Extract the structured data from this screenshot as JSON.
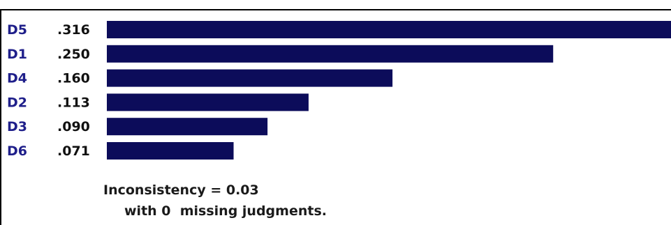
{
  "chart_data": {
    "type": "bar",
    "orientation": "horizontal",
    "categories": [
      "D5",
      "D1",
      "D4",
      "D2",
      "D3",
      "D6"
    ],
    "value_labels": [
      ".316",
      ".250",
      ".160",
      ".113",
      ".090",
      ".071"
    ],
    "values": [
      0.316,
      0.25,
      0.16,
      0.113,
      0.09,
      0.071
    ],
    "xlim": [
      0,
      0.316
    ],
    "grid": false,
    "colors": {
      "bar": "#0c0c5a",
      "category_label": "#1f1f8a",
      "value_label": "#111111",
      "border": "#000000"
    }
  },
  "footer": {
    "inconsistency": "Inconsistency = 0.03",
    "missing": "with 0  missing judgments."
  }
}
